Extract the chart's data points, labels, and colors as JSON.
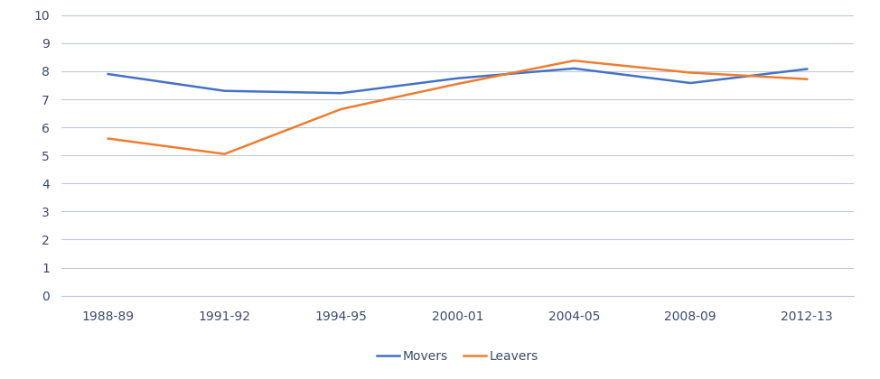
{
  "x_labels": [
    "1988-89",
    "1991-92",
    "1994-95",
    "2000-01",
    "2004-05",
    "2008-09",
    "2012-13"
  ],
  "movers": [
    7.9,
    7.3,
    7.22,
    7.75,
    8.1,
    7.58,
    8.08
  ],
  "leavers": [
    5.6,
    5.05,
    6.65,
    7.55,
    8.38,
    7.95,
    7.72
  ],
  "movers_color": "#4472C4",
  "leavers_color": "#ED7D31",
  "line_width": 1.8,
  "ylim": [
    0,
    10
  ],
  "yticks": [
    0,
    1,
    2,
    3,
    4,
    5,
    6,
    7,
    8,
    9,
    10
  ],
  "grid_color": "#BFC9D9",
  "legend_labels": [
    "Movers",
    "Leavers"
  ],
  "background_color": "#FFFFFF",
  "tick_fontsize": 10,
  "legend_fontsize": 10,
  "label_color": "#3B4A6B",
  "xlim_left": -0.4,
  "xlim_right": 6.4
}
